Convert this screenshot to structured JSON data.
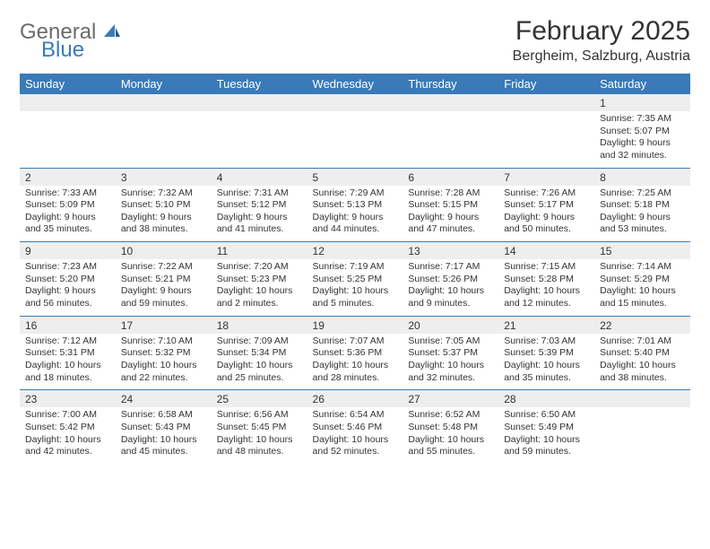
{
  "logo": {
    "gray_text": "General",
    "blue_text": "Blue",
    "gray_color": "#6b6b6b",
    "blue_color": "#3a7ab8"
  },
  "title": "February 2025",
  "location": "Bergheim, Salzburg, Austria",
  "header_bg": "#3a7ab8",
  "header_fg": "#ffffff",
  "daynum_bg": "#eeeeee",
  "border_color": "#3a7ab8",
  "text_color": "#333333",
  "day_headers": [
    "Sunday",
    "Monday",
    "Tuesday",
    "Wednesday",
    "Thursday",
    "Friday",
    "Saturday"
  ],
  "weeks": [
    [
      {
        "n": "",
        "sunrise": "",
        "sunset": "",
        "daylight": ""
      },
      {
        "n": "",
        "sunrise": "",
        "sunset": "",
        "daylight": ""
      },
      {
        "n": "",
        "sunrise": "",
        "sunset": "",
        "daylight": ""
      },
      {
        "n": "",
        "sunrise": "",
        "sunset": "",
        "daylight": ""
      },
      {
        "n": "",
        "sunrise": "",
        "sunset": "",
        "daylight": ""
      },
      {
        "n": "",
        "sunrise": "",
        "sunset": "",
        "daylight": ""
      },
      {
        "n": "1",
        "sunrise": "Sunrise: 7:35 AM",
        "sunset": "Sunset: 5:07 PM",
        "daylight": "Daylight: 9 hours and 32 minutes."
      }
    ],
    [
      {
        "n": "2",
        "sunrise": "Sunrise: 7:33 AM",
        "sunset": "Sunset: 5:09 PM",
        "daylight": "Daylight: 9 hours and 35 minutes."
      },
      {
        "n": "3",
        "sunrise": "Sunrise: 7:32 AM",
        "sunset": "Sunset: 5:10 PM",
        "daylight": "Daylight: 9 hours and 38 minutes."
      },
      {
        "n": "4",
        "sunrise": "Sunrise: 7:31 AM",
        "sunset": "Sunset: 5:12 PM",
        "daylight": "Daylight: 9 hours and 41 minutes."
      },
      {
        "n": "5",
        "sunrise": "Sunrise: 7:29 AM",
        "sunset": "Sunset: 5:13 PM",
        "daylight": "Daylight: 9 hours and 44 minutes."
      },
      {
        "n": "6",
        "sunrise": "Sunrise: 7:28 AM",
        "sunset": "Sunset: 5:15 PM",
        "daylight": "Daylight: 9 hours and 47 minutes."
      },
      {
        "n": "7",
        "sunrise": "Sunrise: 7:26 AM",
        "sunset": "Sunset: 5:17 PM",
        "daylight": "Daylight: 9 hours and 50 minutes."
      },
      {
        "n": "8",
        "sunrise": "Sunrise: 7:25 AM",
        "sunset": "Sunset: 5:18 PM",
        "daylight": "Daylight: 9 hours and 53 minutes."
      }
    ],
    [
      {
        "n": "9",
        "sunrise": "Sunrise: 7:23 AM",
        "sunset": "Sunset: 5:20 PM",
        "daylight": "Daylight: 9 hours and 56 minutes."
      },
      {
        "n": "10",
        "sunrise": "Sunrise: 7:22 AM",
        "sunset": "Sunset: 5:21 PM",
        "daylight": "Daylight: 9 hours and 59 minutes."
      },
      {
        "n": "11",
        "sunrise": "Sunrise: 7:20 AM",
        "sunset": "Sunset: 5:23 PM",
        "daylight": "Daylight: 10 hours and 2 minutes."
      },
      {
        "n": "12",
        "sunrise": "Sunrise: 7:19 AM",
        "sunset": "Sunset: 5:25 PM",
        "daylight": "Daylight: 10 hours and 5 minutes."
      },
      {
        "n": "13",
        "sunrise": "Sunrise: 7:17 AM",
        "sunset": "Sunset: 5:26 PM",
        "daylight": "Daylight: 10 hours and 9 minutes."
      },
      {
        "n": "14",
        "sunrise": "Sunrise: 7:15 AM",
        "sunset": "Sunset: 5:28 PM",
        "daylight": "Daylight: 10 hours and 12 minutes."
      },
      {
        "n": "15",
        "sunrise": "Sunrise: 7:14 AM",
        "sunset": "Sunset: 5:29 PM",
        "daylight": "Daylight: 10 hours and 15 minutes."
      }
    ],
    [
      {
        "n": "16",
        "sunrise": "Sunrise: 7:12 AM",
        "sunset": "Sunset: 5:31 PM",
        "daylight": "Daylight: 10 hours and 18 minutes."
      },
      {
        "n": "17",
        "sunrise": "Sunrise: 7:10 AM",
        "sunset": "Sunset: 5:32 PM",
        "daylight": "Daylight: 10 hours and 22 minutes."
      },
      {
        "n": "18",
        "sunrise": "Sunrise: 7:09 AM",
        "sunset": "Sunset: 5:34 PM",
        "daylight": "Daylight: 10 hours and 25 minutes."
      },
      {
        "n": "19",
        "sunrise": "Sunrise: 7:07 AM",
        "sunset": "Sunset: 5:36 PM",
        "daylight": "Daylight: 10 hours and 28 minutes."
      },
      {
        "n": "20",
        "sunrise": "Sunrise: 7:05 AM",
        "sunset": "Sunset: 5:37 PM",
        "daylight": "Daylight: 10 hours and 32 minutes."
      },
      {
        "n": "21",
        "sunrise": "Sunrise: 7:03 AM",
        "sunset": "Sunset: 5:39 PM",
        "daylight": "Daylight: 10 hours and 35 minutes."
      },
      {
        "n": "22",
        "sunrise": "Sunrise: 7:01 AM",
        "sunset": "Sunset: 5:40 PM",
        "daylight": "Daylight: 10 hours and 38 minutes."
      }
    ],
    [
      {
        "n": "23",
        "sunrise": "Sunrise: 7:00 AM",
        "sunset": "Sunset: 5:42 PM",
        "daylight": "Daylight: 10 hours and 42 minutes."
      },
      {
        "n": "24",
        "sunrise": "Sunrise: 6:58 AM",
        "sunset": "Sunset: 5:43 PM",
        "daylight": "Daylight: 10 hours and 45 minutes."
      },
      {
        "n": "25",
        "sunrise": "Sunrise: 6:56 AM",
        "sunset": "Sunset: 5:45 PM",
        "daylight": "Daylight: 10 hours and 48 minutes."
      },
      {
        "n": "26",
        "sunrise": "Sunrise: 6:54 AM",
        "sunset": "Sunset: 5:46 PM",
        "daylight": "Daylight: 10 hours and 52 minutes."
      },
      {
        "n": "27",
        "sunrise": "Sunrise: 6:52 AM",
        "sunset": "Sunset: 5:48 PM",
        "daylight": "Daylight: 10 hours and 55 minutes."
      },
      {
        "n": "28",
        "sunrise": "Sunrise: 6:50 AM",
        "sunset": "Sunset: 5:49 PM",
        "daylight": "Daylight: 10 hours and 59 minutes."
      },
      {
        "n": "",
        "sunrise": "",
        "sunset": "",
        "daylight": ""
      }
    ]
  ]
}
